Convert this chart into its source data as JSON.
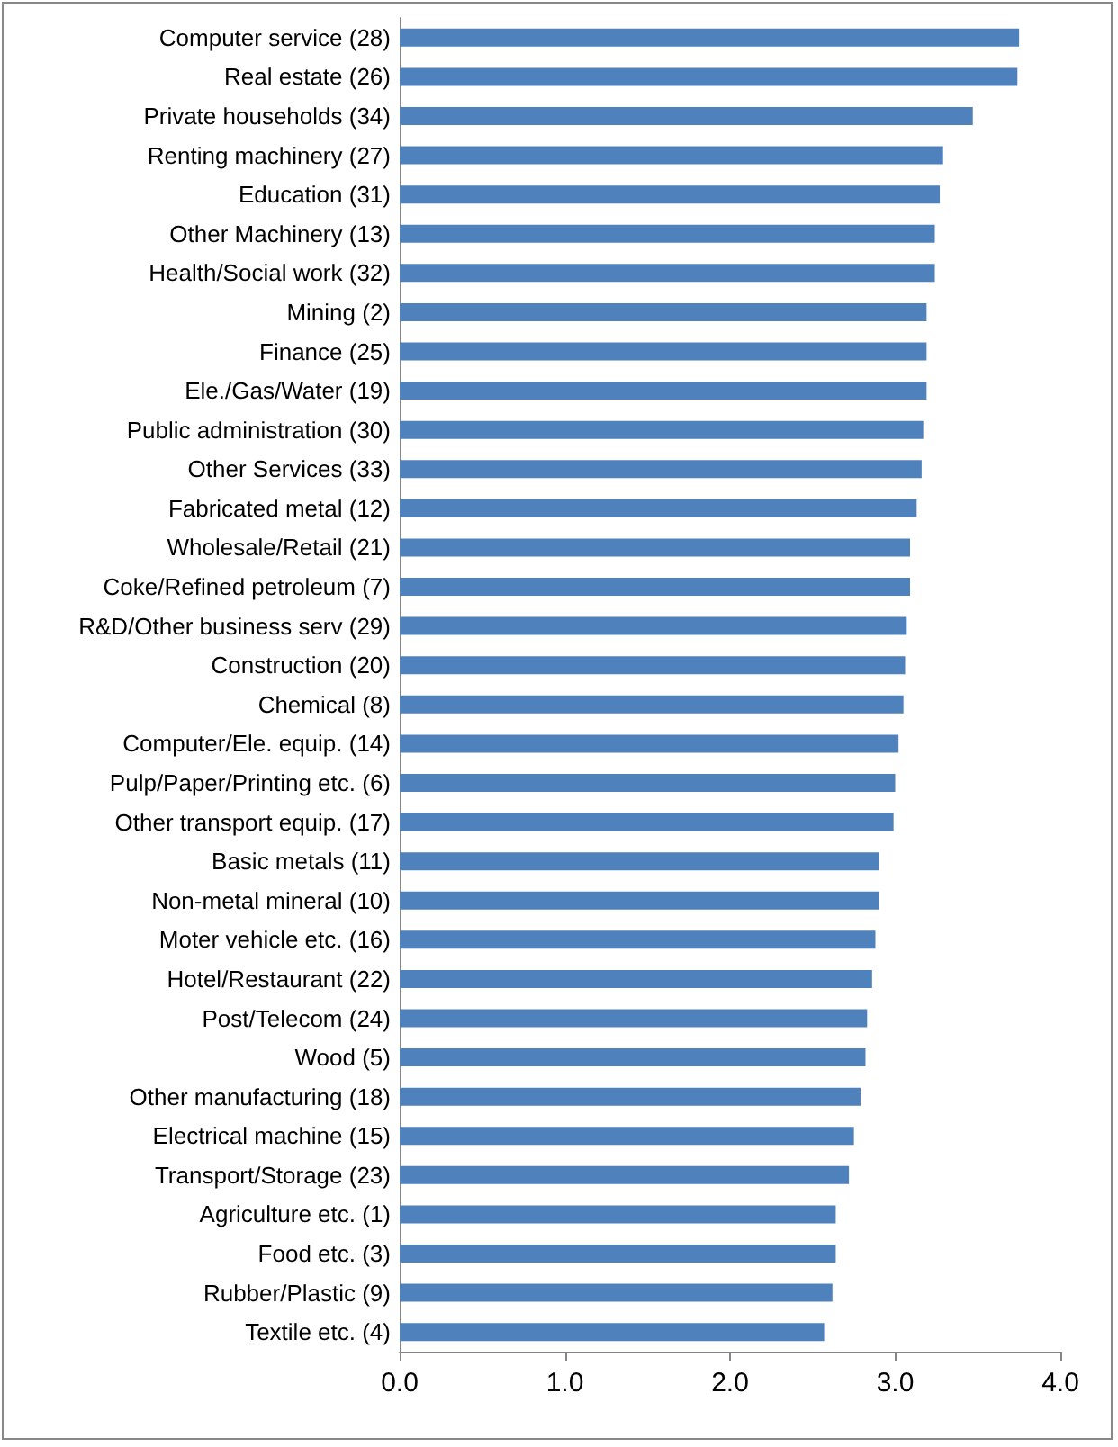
{
  "chart_data": {
    "type": "bar",
    "orientation": "horizontal",
    "color": "#4f81bd",
    "categories": [
      "Computer service (28)",
      "Real estate (26)",
      "Private households (34)",
      "Renting machinery (27)",
      "Education (31)",
      "Other Machinery (13)",
      "Health/Social work (32)",
      "Mining (2)",
      "Finance (25)",
      "Ele./Gas/Water (19)",
      "Public administration (30)",
      "Other Services (33)",
      "Fabricated metal (12)",
      "Wholesale/Retail (21)",
      "Coke/Refined petroleum (7)",
      "R&D/Other business serv (29)",
      "Construction (20)",
      "Chemical (8)",
      "Computer/Ele. equip. (14)",
      "Pulp/Paper/Printing etc. (6)",
      "Other transport equip. (17)",
      "Basic metals (11)",
      "Non-metal mineral (10)",
      "Moter vehicle etc. (16)",
      "Hotel/Restaurant (22)",
      "Post/Telecom (24)",
      "Wood (5)",
      "Other manufacturing (18)",
      "Electrical machine (15)",
      "Transport/Storage (23)",
      "Agriculture etc. (1)",
      "Food etc. (3)",
      "Rubber/Plastic (9)",
      "Textile etc. (4)"
    ],
    "values": [
      3.75,
      3.74,
      3.47,
      3.29,
      3.27,
      3.24,
      3.24,
      3.19,
      3.19,
      3.19,
      3.17,
      3.16,
      3.13,
      3.09,
      3.09,
      3.07,
      3.06,
      3.05,
      3.02,
      3.0,
      2.99,
      2.9,
      2.9,
      2.88,
      2.86,
      2.83,
      2.82,
      2.79,
      2.75,
      2.72,
      2.64,
      2.64,
      2.62,
      2.57
    ],
    "xlim": [
      0,
      4
    ],
    "xticks": [
      {
        "value": 0,
        "label": "0.0"
      },
      {
        "value": 1,
        "label": "1.0"
      },
      {
        "value": 2,
        "label": "2.0"
      },
      {
        "value": 3,
        "label": "3.0"
      },
      {
        "value": 4,
        "label": "4.0"
      }
    ],
    "grid": false
  }
}
